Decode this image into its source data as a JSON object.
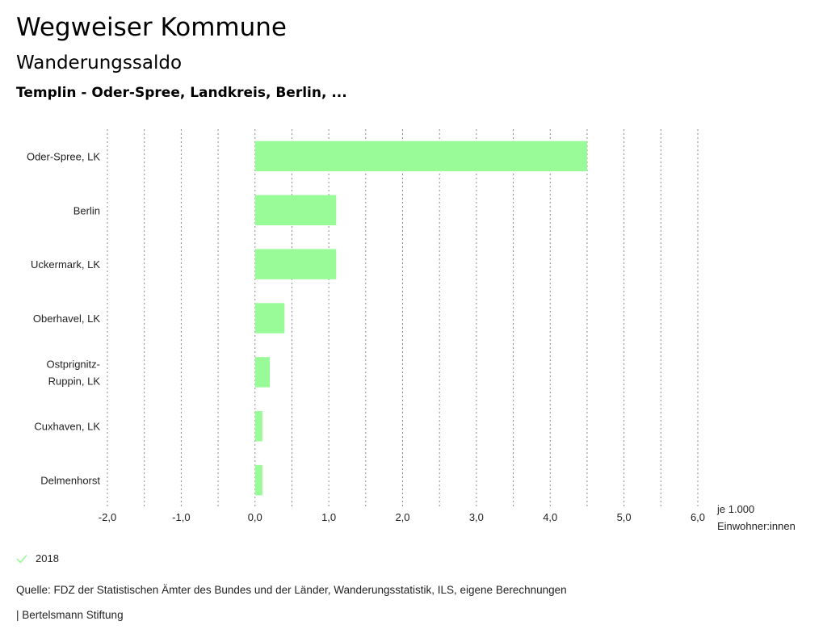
{
  "header": {
    "title": "Wegweiser Kommune",
    "subtitle": "Wanderungssaldo",
    "context": "Templin - Oder-Spree, Landkreis, Berlin, ..."
  },
  "chart_data": {
    "type": "bar",
    "orientation": "horizontal",
    "categories": [
      "Oder-Spree, LK",
      "Berlin",
      "Uckermark, LK",
      "Oberhavel, LK",
      "Ostprignitz-Ruppin, LK",
      "Cuxhaven, LK",
      "Delmenhorst"
    ],
    "category_lines": [
      [
        "Oder-Spree, LK"
      ],
      [
        "Berlin"
      ],
      [
        "Uckermark, LK"
      ],
      [
        "Oberhavel, LK"
      ],
      [
        "Ostprignitz-",
        "Ruppin, LK"
      ],
      [
        "Cuxhaven, LK"
      ],
      [
        "Delmenhorst"
      ]
    ],
    "series": [
      {
        "name": "2018",
        "values": [
          4.5,
          1.1,
          1.1,
          0.4,
          0.2,
          0.1,
          0.1
        ]
      }
    ],
    "xlim": [
      -2.0,
      6.0
    ],
    "x_ticks": [
      -2.0,
      -1.0,
      0.0,
      1.0,
      2.0,
      3.0,
      4.0,
      5.0,
      6.0
    ],
    "x_tick_labels": [
      "-2,0",
      "-1,0",
      "0,0",
      "1,0",
      "2,0",
      "3,0",
      "4,0",
      "5,0",
      "6,0"
    ],
    "x_minor_ticks": [
      -1.5,
      -0.5,
      0.5,
      1.5,
      2.5,
      3.5,
      4.5,
      5.5
    ],
    "unit_label": [
      "je 1.000",
      "Einwohner:innen"
    ],
    "grid": true,
    "bar_color": "#98fb98"
  },
  "legend": {
    "label": "2018",
    "color": "#98fb98",
    "icon": "check-icon"
  },
  "footer": {
    "source": "Quelle: FDZ der Statistischen Ämter des Bundes und der Länder, Wanderungsstatistik, ILS, eigene Berechnungen",
    "brand": "| Bertelsmann Stiftung"
  }
}
